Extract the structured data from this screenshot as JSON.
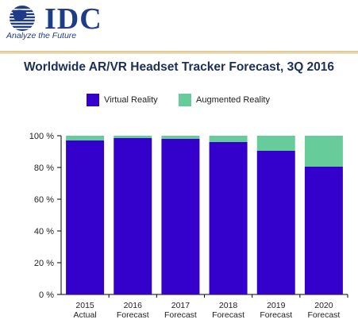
{
  "brand": {
    "name": "IDC",
    "tagline": "Analyze the Future"
  },
  "colors": {
    "brand": "#1f3c88",
    "vr": "#3300cc",
    "ar": "#66cc99",
    "title": "#1c2f57"
  },
  "chart_data": {
    "type": "bar",
    "stacked": true,
    "title": "Worldwide AR/VR Headset Tracker Forecast, 3Q 2016",
    "xlabel": "",
    "ylabel": "",
    "ylim": [
      0,
      100
    ],
    "yticks": [
      "0 %",
      "20 %",
      "40 %",
      "60 %",
      "80 %",
      "100 %"
    ],
    "ytick_values": [
      0,
      20,
      40,
      60,
      80,
      100
    ],
    "grid": false,
    "legend_position": "top",
    "categories": [
      [
        "2015",
        "Actual"
      ],
      [
        "2016",
        "Forecast"
      ],
      [
        "2017",
        "Forecast"
      ],
      [
        "2018",
        "Forecast"
      ],
      [
        "2019",
        "Forecast"
      ],
      [
        "2020",
        "Forecast"
      ]
    ],
    "series": [
      {
        "name": "Virtual Reality",
        "color": "#3300cc",
        "values": [
          97,
          98.5,
          98,
          96,
          90.5,
          80.5
        ]
      },
      {
        "name": "Augmented Reality",
        "color": "#66cc99",
        "values": [
          3,
          1.5,
          2,
          4,
          9.5,
          19.5
        ]
      }
    ]
  }
}
